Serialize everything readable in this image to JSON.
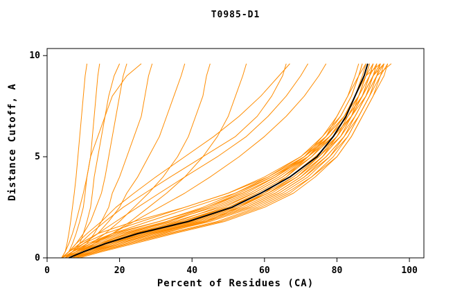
{
  "chart_data": {
    "type": "line",
    "title": "T0985-D1",
    "xlabel": "Percent of Residues (CA)",
    "ylabel": "Distance Cutoff, A",
    "xlim": [
      0,
      104
    ],
    "ylim": [
      0,
      10.35
    ],
    "x_ticks": [
      0,
      20,
      40,
      60,
      80,
      100
    ],
    "y_ticks": [
      0,
      5,
      10
    ],
    "grid": false,
    "legend": "none",
    "model_color": "#FF8C00",
    "reference_color": "#000000",
    "y_levels": [
      0,
      0.3,
      0.7,
      1.2,
      1.8,
      2.5,
      3.2,
      4,
      5,
      6,
      7,
      8,
      9,
      9.6
    ],
    "models": [
      [
        4,
        5,
        5.5,
        6,
        6.5,
        7,
        7.5,
        8,
        8.5,
        9,
        9.5,
        10,
        10.5,
        11
      ],
      [
        4,
        6,
        7,
        8,
        9,
        10,
        10.5,
        11,
        12,
        12.5,
        13,
        13.5,
        14,
        14.5
      ],
      [
        5,
        7,
        9,
        10,
        11,
        12,
        12.5,
        13,
        14,
        15,
        16,
        17,
        18.5,
        20
      ],
      [
        4,
        6,
        8,
        10,
        12,
        13.5,
        15,
        16,
        17,
        18,
        19,
        20,
        21,
        22
      ],
      [
        5,
        8,
        11,
        13,
        15,
        17,
        18,
        20,
        22,
        24,
        26,
        27,
        28,
        29
      ],
      [
        4,
        7,
        10,
        14,
        17,
        20,
        22,
        25,
        28,
        31,
        33,
        35,
        37,
        38
      ],
      [
        5,
        8,
        12,
        16,
        20,
        24,
        28,
        32,
        36,
        39,
        41,
        43,
        44,
        45
      ],
      [
        5,
        9,
        13,
        18,
        23,
        28,
        33,
        38,
        43,
        47,
        50,
        52,
        54,
        55
      ],
      [
        4,
        5,
        6,
        7,
        8,
        9,
        10,
        11,
        12,
        14,
        16,
        18,
        22,
        26
      ],
      [
        5,
        7,
        9,
        12,
        16,
        21,
        27,
        34,
        43,
        52,
        58,
        62,
        65,
        66
      ],
      [
        4,
        6,
        8,
        11,
        15,
        19,
        24,
        30,
        38,
        46,
        53,
        59,
        64,
        67
      ],
      [
        5,
        7,
        10,
        14,
        19,
        25,
        31,
        38,
        47,
        55,
        61,
        66,
        70,
        72
      ],
      [
        6,
        9,
        13,
        18,
        24,
        31,
        38,
        45,
        53,
        60,
        66,
        71,
        75,
        77
      ],
      [
        4,
        8,
        14,
        23,
        37,
        49,
        57,
        65,
        72,
        77,
        80,
        83,
        85,
        86
      ],
      [
        8,
        12,
        18,
        27,
        41,
        53,
        61,
        69,
        76,
        81,
        84,
        87,
        89,
        90
      ],
      [
        5,
        8,
        12,
        20,
        33,
        46,
        55,
        63,
        71,
        76,
        80,
        83,
        86,
        87
      ],
      [
        7,
        12,
        20,
        30,
        44,
        56,
        64,
        71,
        78,
        82,
        85,
        88,
        90,
        91
      ],
      [
        5,
        7,
        11,
        18,
        31,
        43,
        52,
        61,
        70,
        76,
        81,
        84,
        86,
        88
      ],
      [
        8,
        14,
        22,
        33,
        47,
        58,
        66,
        73,
        80,
        84,
        87,
        90,
        93,
        94
      ],
      [
        4,
        6,
        9,
        14,
        24,
        38,
        50,
        60,
        70,
        77,
        82,
        86,
        88,
        89
      ],
      [
        8,
        14,
        22,
        32,
        44,
        53,
        60,
        66,
        72,
        77,
        81,
        84,
        86,
        87
      ],
      [
        6,
        11,
        17,
        26,
        40,
        52,
        60,
        68,
        75,
        80,
        83,
        86,
        88,
        89
      ],
      [
        5,
        9,
        15,
        24,
        38,
        50,
        58,
        66,
        73,
        78,
        82,
        85,
        87,
        88
      ],
      [
        7,
        11,
        18,
        28,
        42,
        54,
        62,
        69,
        76,
        80,
        84,
        86,
        88,
        90
      ],
      [
        6,
        10,
        16,
        24,
        36,
        47,
        56,
        64,
        72,
        78,
        82,
        85,
        88,
        92
      ],
      [
        5,
        8,
        13,
        21,
        34,
        45,
        54,
        63,
        72,
        78,
        83,
        87,
        90,
        93
      ],
      [
        7,
        13,
        21,
        31,
        45,
        57,
        65,
        72,
        78,
        83,
        86,
        89,
        91,
        92
      ],
      [
        6,
        10,
        17,
        27,
        41,
        53,
        61,
        68,
        75,
        81,
        85,
        88,
        91,
        95
      ],
      [
        4,
        7,
        12,
        19,
        31,
        44,
        54,
        63,
        71,
        77,
        82,
        86,
        89,
        91
      ],
      [
        8,
        13,
        20,
        29,
        43,
        55,
        63,
        70,
        77,
        82,
        86,
        89,
        92,
        93
      ],
      [
        5,
        9,
        14,
        22,
        35,
        48,
        57,
        65,
        73,
        79,
        84,
        87,
        90,
        92
      ],
      [
        6,
        11,
        18,
        28,
        43,
        55,
        63,
        70,
        76,
        81,
        84,
        87,
        89,
        90
      ],
      [
        7,
        12,
        19,
        29,
        44,
        56,
        64,
        71,
        77,
        82,
        85,
        88,
        90,
        91
      ],
      [
        5,
        8,
        14,
        23,
        37,
        50,
        59,
        67,
        74,
        80,
        84,
        87,
        89,
        90
      ],
      [
        6,
        9,
        15,
        25,
        40,
        52,
        61,
        69,
        75,
        80,
        83,
        86,
        88,
        89
      ],
      [
        5,
        8,
        12,
        18,
        28,
        40,
        52,
        62,
        72,
        79,
        84,
        88,
        91,
        93
      ],
      [
        4,
        6,
        10,
        16,
        26,
        38,
        50,
        61,
        71,
        78,
        83,
        87,
        90,
        92
      ],
      [
        9,
        15,
        24,
        35,
        49,
        60,
        68,
        74,
        80,
        84,
        87,
        90,
        92,
        94
      ],
      [
        8,
        14,
        23,
        34,
        48,
        59,
        67,
        73,
        79,
        83,
        86,
        89,
        91,
        92
      ],
      [
        7,
        10,
        15,
        22,
        33,
        44,
        53,
        62,
        71,
        78,
        83,
        87,
        90,
        91
      ]
    ],
    "reference": [
      6,
      10,
      16,
      25,
      39,
      51,
      59,
      67,
      74.5,
      79,
      82.5,
      85,
      87.5,
      88.5
    ]
  }
}
